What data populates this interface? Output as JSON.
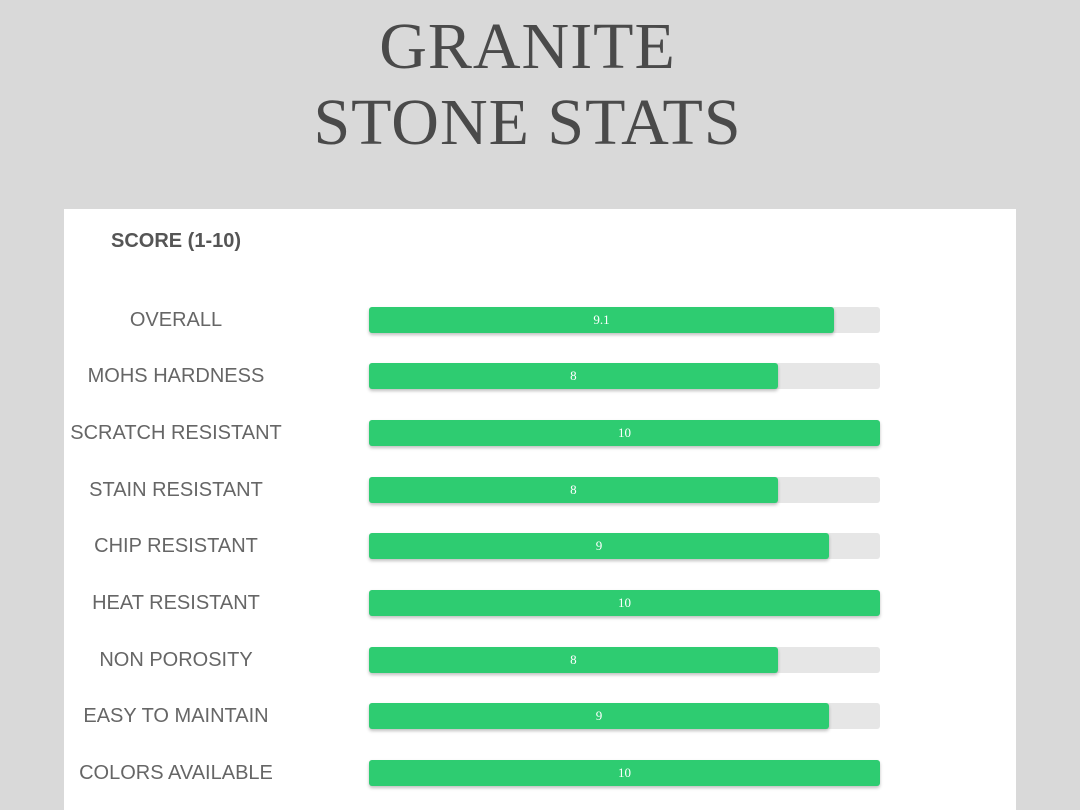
{
  "title_line1": "GRANITE",
  "title_line2": "STONE STATS",
  "chart_data": {
    "type": "bar",
    "orientation": "horizontal",
    "title": "SCORE (1-10)",
    "xlim": [
      0,
      10
    ],
    "bar_color": "#2ecc71",
    "track_color": "#e6e6e6",
    "categories": [
      "OVERALL",
      "MOHS HARDNESS",
      "SCRATCH RESISTANT",
      "STAIN RESISTANT",
      "CHIP RESISTANT",
      "HEAT RESISTANT",
      "NON POROSITY",
      "EASY TO MAINTAIN",
      "COLORS AVAILABLE"
    ],
    "values": [
      9.1,
      8,
      10,
      8,
      9,
      10,
      8,
      9,
      10
    ]
  }
}
